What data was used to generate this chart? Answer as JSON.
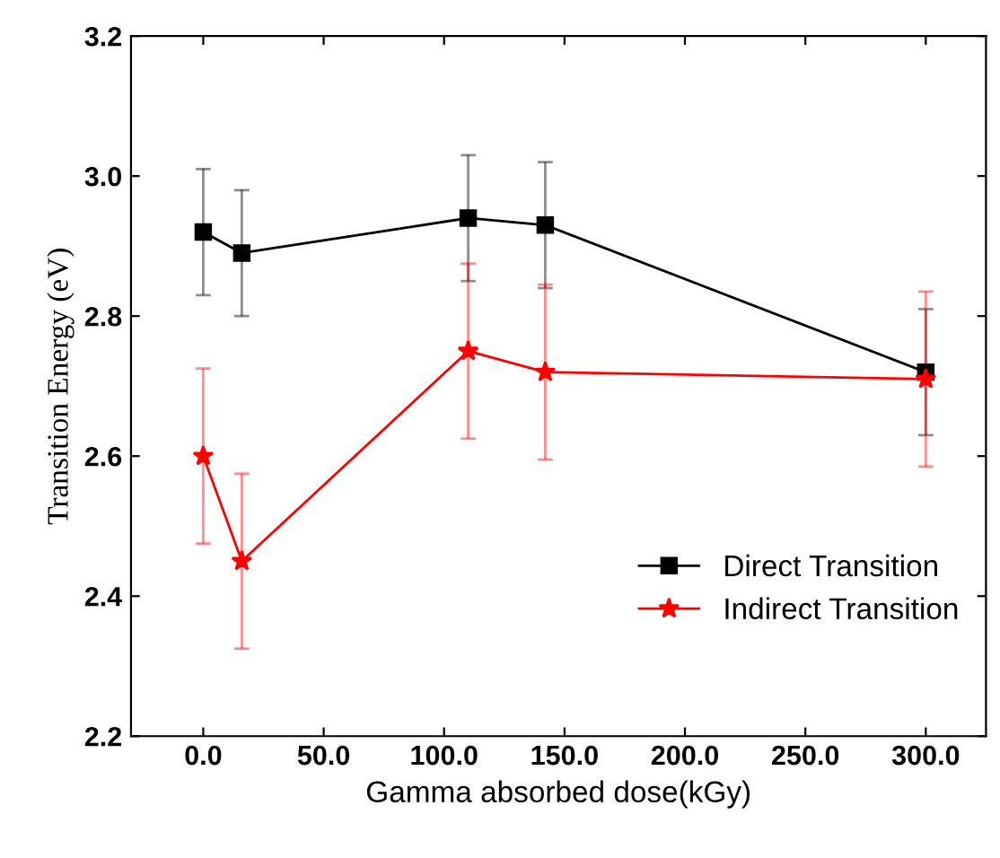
{
  "chart_data": {
    "type": "line",
    "xlabel": "Gamma absorbed dose(kGy)",
    "ylabel": "Transition Energy (eV)",
    "xlim": [
      -30,
      325
    ],
    "xticks": [
      {
        "value": 0,
        "label": "0.0"
      },
      {
        "value": 50,
        "label": "50.0"
      },
      {
        "value": 100,
        "label": "100.0"
      },
      {
        "value": 150,
        "label": "150.0"
      },
      {
        "value": 200,
        "label": "200.0"
      },
      {
        "value": 250,
        "label": "250.0"
      },
      {
        "value": 300,
        "label": "300.0"
      }
    ],
    "ylim": [
      2.2,
      3.2
    ],
    "yticks": [
      {
        "value": 2.2,
        "label": "2.2"
      },
      {
        "value": 2.4,
        "label": "2.4"
      },
      {
        "value": 2.6,
        "label": "2.6"
      },
      {
        "value": 2.8,
        "label": "2.8"
      },
      {
        "value": 3.0,
        "label": "3.0"
      },
      {
        "value": 3.2,
        "label": "3.2"
      }
    ],
    "x": [
      0,
      16,
      110,
      142,
      300
    ],
    "grid": false,
    "legend": "bottom right",
    "line_style": "solid",
    "series": [
      {
        "name": "Direct Transition",
        "color": "#000000",
        "marker": "square",
        "values": [
          2.92,
          2.89,
          2.94,
          2.93,
          2.72
        ],
        "errors": [
          0.09,
          0.09,
          0.09,
          0.09,
          0.09
        ]
      },
      {
        "name": "Indirect Transition",
        "color": "#ff0000",
        "marker": "star",
        "values": [
          2.6,
          2.45,
          2.75,
          2.72,
          2.71
        ],
        "errors": [
          0.125,
          0.125,
          0.125,
          0.125,
          0.125
        ]
      }
    ]
  }
}
